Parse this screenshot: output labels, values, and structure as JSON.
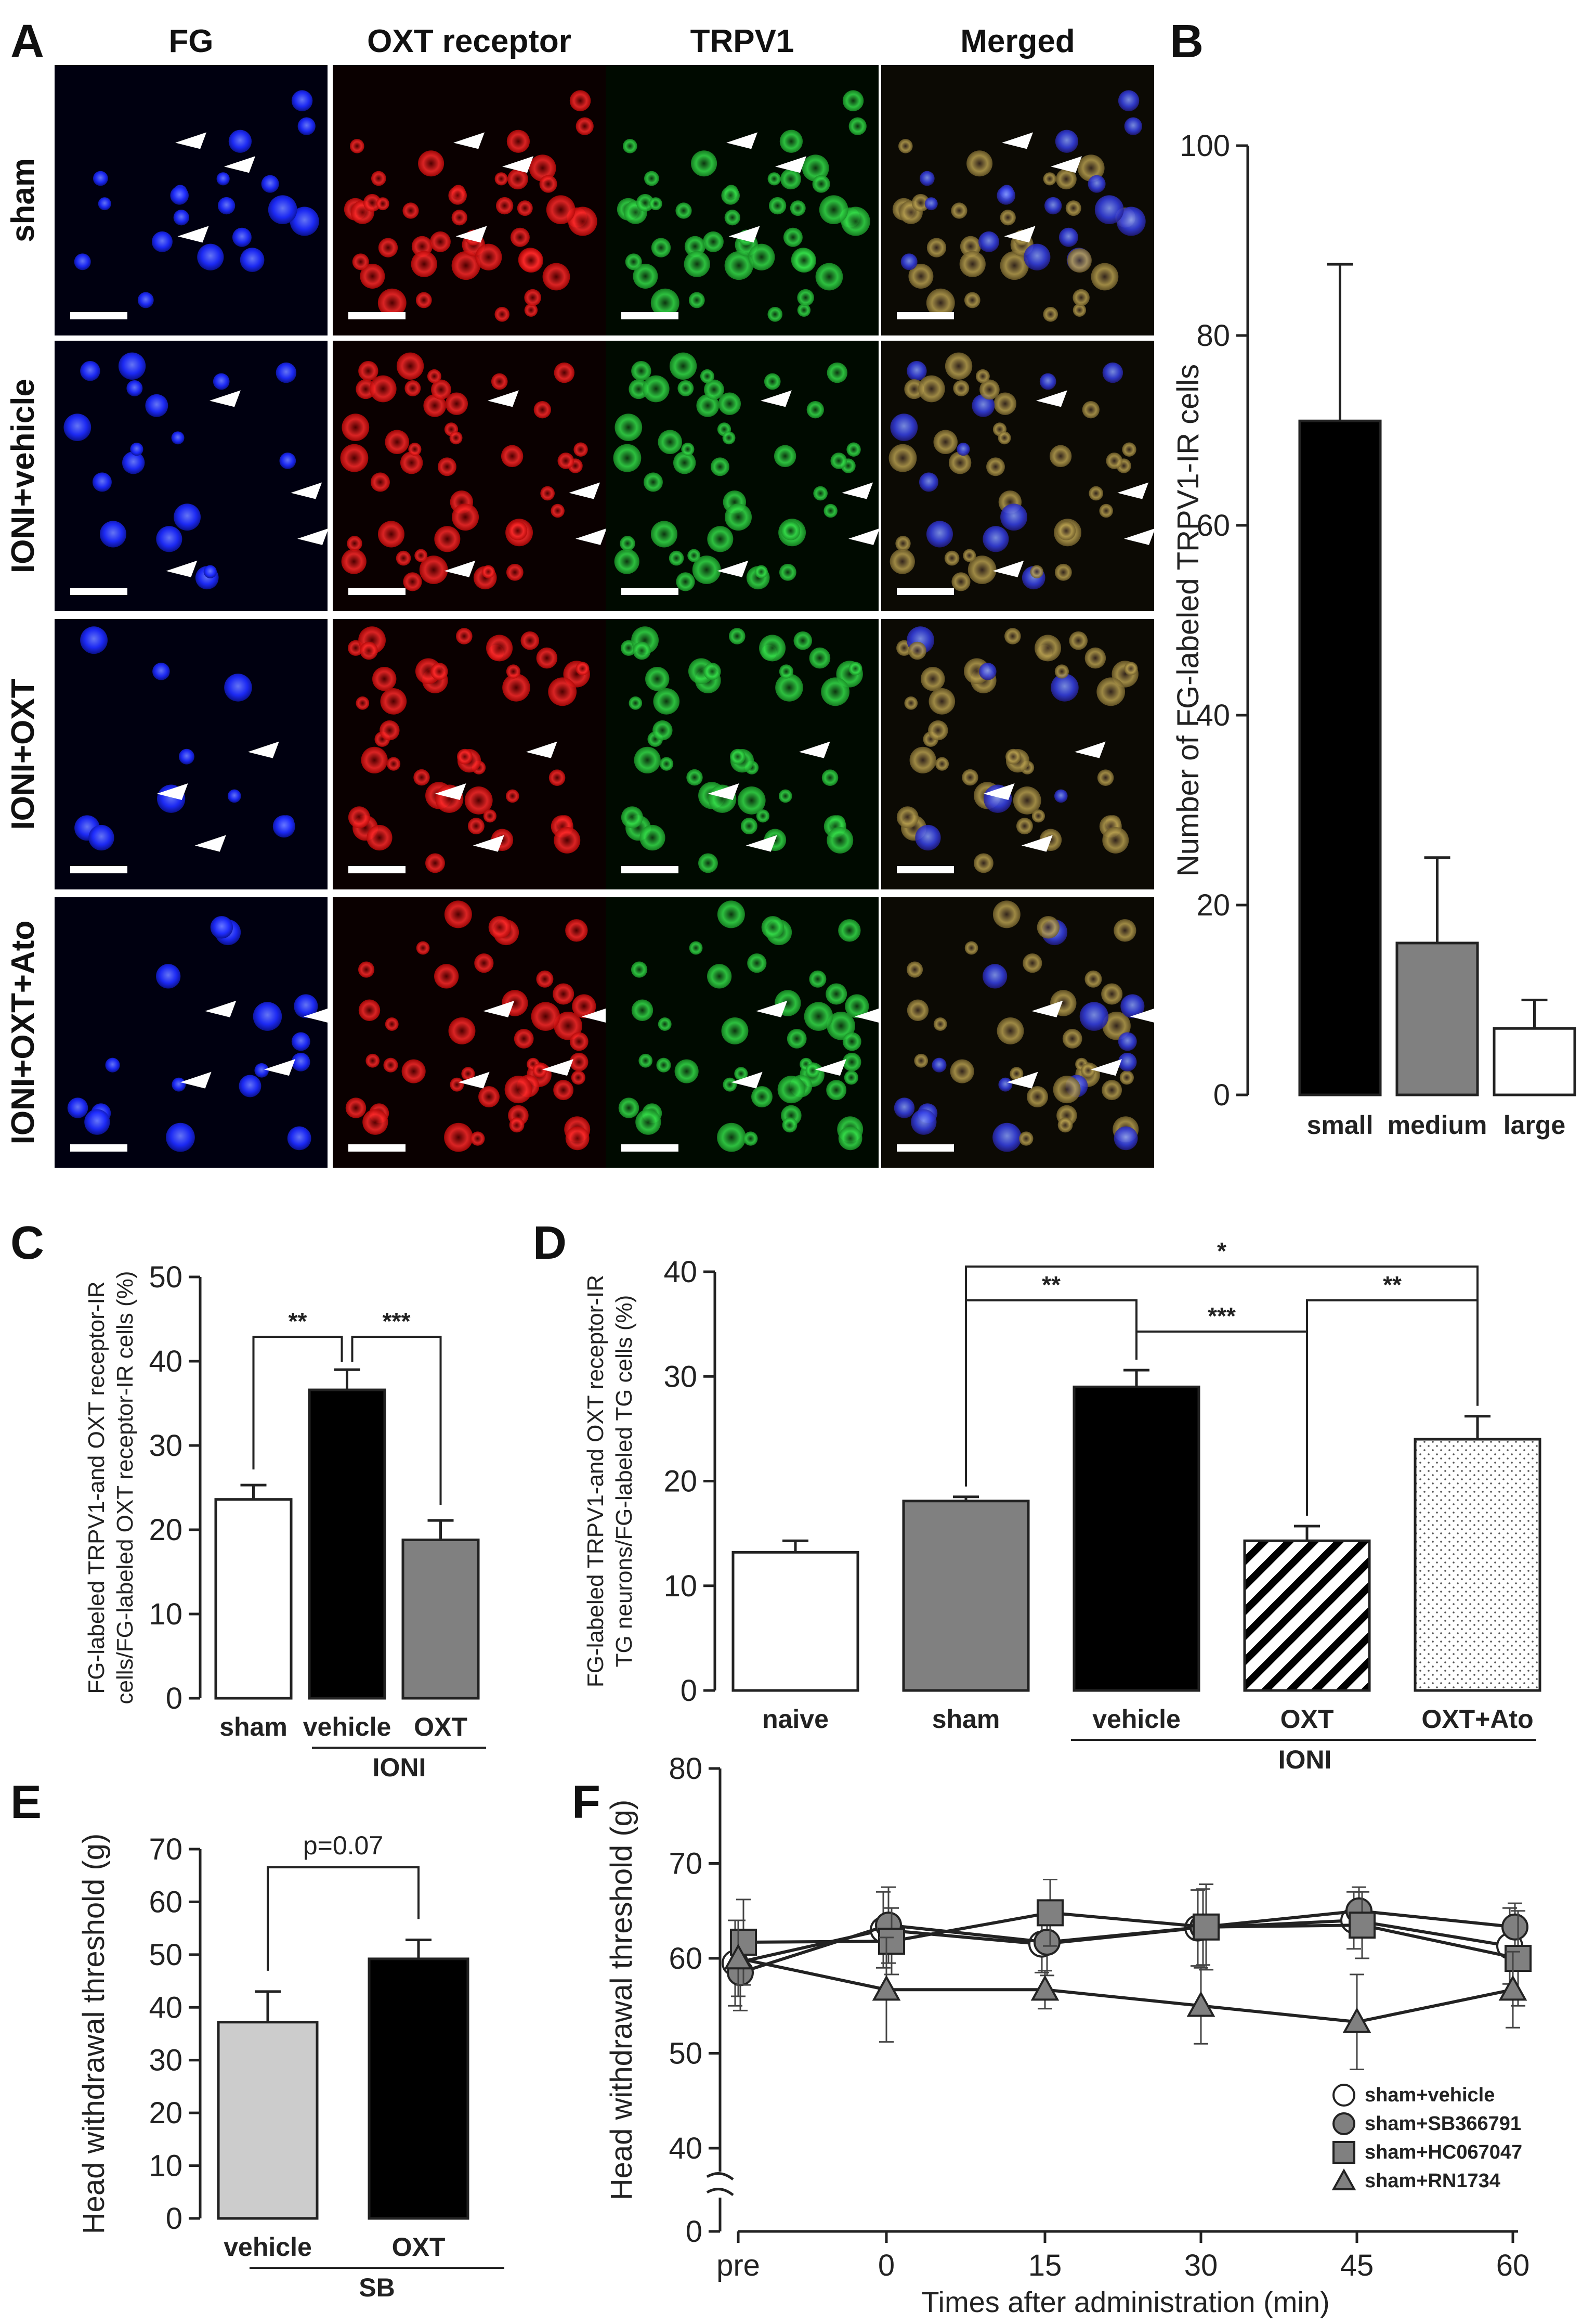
{
  "panel_labels": {
    "A": "A",
    "B": "B",
    "C": "C",
    "D": "D",
    "E": "E",
    "F": "F"
  },
  "panel_a": {
    "columns": [
      "FG",
      "OXT receptor",
      "TRPV1",
      "Merged"
    ],
    "rows": [
      "sham",
      "IONI+vehicle",
      "IONI+OXT",
      "IONI+OXT+Ato"
    ],
    "channel_colors": [
      "#1f2dff",
      "#ff2020",
      "#22d83a",
      "#7a7a40"
    ]
  },
  "chart_data": [
    {
      "id": "B",
      "type": "bar",
      "categories": [
        "small",
        "medium",
        "large"
      ],
      "values": [
        71,
        16,
        7
      ],
      "errors": [
        16.5,
        9,
        3
      ],
      "colors": [
        "#000000",
        "#808080",
        "#ffffff"
      ],
      "ylabel": "Number of FG-labeled TRPV1-IR cells",
      "ylim": [
        0,
        100
      ],
      "yticks": [
        "0",
        "20",
        "40",
        "60",
        "80",
        "100"
      ]
    },
    {
      "id": "C",
      "type": "bar",
      "categories": [
        "sham",
        "vehicle",
        "OXT"
      ],
      "values": [
        23.6,
        36.6,
        18.8
      ],
      "errors": [
        1.7,
        2.4,
        2.3
      ],
      "colors": [
        "#ffffff",
        "#000000",
        "#808080"
      ],
      "group_label": "IONI",
      "ylabel_line1": "FG-labeled TRPV1-and OXT receptor-IR",
      "ylabel_line2": "cells/FG-labeled OXT receptor-IR cells (%)",
      "ylim": [
        0,
        50
      ],
      "yticks": [
        "0",
        "10",
        "20",
        "30",
        "40",
        "50"
      ],
      "significance": [
        "**",
        "***"
      ]
    },
    {
      "id": "D",
      "type": "bar",
      "categories": [
        "naive",
        "sham",
        "vehicle",
        "OXT",
        "OXT+Ato"
      ],
      "values": [
        13.2,
        18.1,
        29.0,
        14.3,
        24.0
      ],
      "errors": [
        1.1,
        0.4,
        1.6,
        1.4,
        2.2
      ],
      "colors": [
        "#ffffff",
        "#808080",
        "#000000",
        "#ffffff",
        "#ffffff"
      ],
      "patterns": [
        "none",
        "none",
        "none",
        "hatch",
        "dots"
      ],
      "group_label": "IONI",
      "ylabel_line1": "FG-labeled TRPV1-and OXT receptor-IR",
      "ylabel_line2": "TG neurons/FG-labeled TG cells (%)",
      "ylim": [
        0,
        40
      ],
      "yticks": [
        "0",
        "10",
        "20",
        "30",
        "40"
      ],
      "significance": [
        "*",
        "**",
        "***",
        "**"
      ]
    },
    {
      "id": "E",
      "type": "bar",
      "categories": [
        "vehicle",
        "OXT"
      ],
      "values": [
        37.2,
        49.2
      ],
      "errors": [
        5.8,
        3.6
      ],
      "colors": [
        "#cccccc",
        "#000000"
      ],
      "group_label": "SB",
      "ylabel": "Head withdrawal threshold (g)",
      "ylim": [
        0,
        70
      ],
      "yticks": [
        "0",
        "10",
        "20",
        "30",
        "40",
        "50",
        "60",
        "70"
      ],
      "annotation": "p=0.07"
    },
    {
      "id": "F",
      "type": "line",
      "x_labels": [
        "pre",
        "0",
        "15",
        "30",
        "45",
        "60"
      ],
      "xlabel": "Times after administration (min)",
      "ylabel": "Head withdrawal threshold (g)",
      "ylim": [
        40,
        80
      ],
      "yticks": [
        "0",
        "40",
        "50",
        "60",
        "70",
        "80"
      ],
      "axis_break": true,
      "legend_position": "bottom-right",
      "series": [
        {
          "name": "sham+vehicle",
          "marker": "circle-open",
          "values": [
            59.5,
            63.0,
            61.5,
            63.2,
            64.0,
            61.3
          ],
          "errors": [
            4.5,
            4.0,
            3.0,
            4.0,
            3.0,
            4.0
          ]
        },
        {
          "name": "sham+SB366791",
          "marker": "circle-filled",
          "values": [
            58.5,
            63.5,
            61.7,
            63.3,
            65.0,
            63.3
          ],
          "errors": [
            4.0,
            4.0,
            3.5,
            4.0,
            2.5,
            2.5
          ]
        },
        {
          "name": "sham+HC067047",
          "marker": "square",
          "values": [
            61.7,
            61.8,
            64.8,
            63.3,
            63.5,
            60.0
          ],
          "errors": [
            4.5,
            3.5,
            3.5,
            4.5,
            3.5,
            5.0
          ]
        },
        {
          "name": "sham+RN1734",
          "marker": "triangle",
          "values": [
            60.0,
            56.7,
            56.7,
            55.0,
            53.3,
            56.7
          ],
          "errors": [
            4.0,
            5.5,
            2.0,
            4.0,
            5.0,
            4.0
          ]
        }
      ]
    }
  ]
}
